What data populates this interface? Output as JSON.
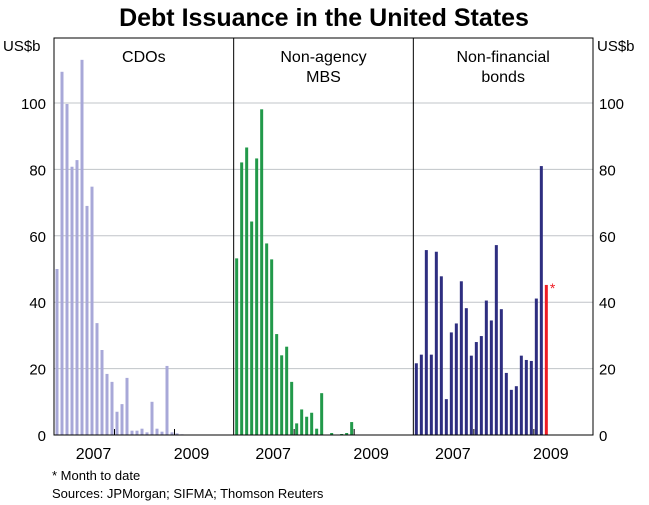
{
  "chart_data": {
    "type": "bar",
    "title": "Debt Issuance in the United States",
    "ylabel_left": "US$b",
    "ylabel_right": "US$b",
    "ylim": [
      0,
      120
    ],
    "yticks": [
      0,
      20,
      40,
      60,
      80,
      100
    ],
    "grid": true,
    "x_tick_labels": [
      {
        "label": "2007",
        "month_index": 7.6
      },
      {
        "label": "2009",
        "month_index": 27.2
      }
    ],
    "year_ticks_month_index": [
      11.8,
      23.8
    ],
    "panels": [
      {
        "title": "CDOs",
        "color": "#a8a8d8",
        "values": [
          50,
          109.4,
          99.7,
          80.8,
          82.8,
          113,
          69,
          74.8,
          33.7,
          25.6,
          18.4,
          16,
          7,
          9.3,
          17.2,
          1.3,
          1.3,
          1.9,
          0.8,
          10,
          1.9,
          1,
          20.8,
          0.8,
          0.5,
          0.2
        ]
      },
      {
        "title": "Non-agency\nMBS",
        "color": "#22994a",
        "values": [
          53.2,
          82.1,
          86.6,
          64.3,
          83.3,
          98.1,
          57.7,
          52.9,
          30.4,
          24,
          26.6,
          16,
          3.5,
          7.7,
          5.5,
          6.7,
          1.9,
          12.6,
          0,
          0.6,
          0,
          0.3,
          0.6,
          3.9
        ]
      },
      {
        "title": "Non-financial\nbonds",
        "color": "#2e2e80",
        "highlight_color": "#ee1c24",
        "highlight_last": true,
        "highlight_marker": "*",
        "values": [
          21.6,
          24.2,
          55.7,
          24.2,
          55.2,
          47.8,
          10.8,
          30.9,
          33.6,
          46.3,
          38.2,
          23.9,
          28,
          29.8,
          40.5,
          34.5,
          57.2,
          37.9,
          18.7,
          13.6,
          14.7,
          23.9,
          22.6,
          22.3,
          41.1,
          81,
          45.2
        ]
      }
    ]
  },
  "footnotes": {
    "note": "*   Month to date",
    "sources": "Sources: JPMorgan; SIFMA; Thomson Reuters"
  }
}
